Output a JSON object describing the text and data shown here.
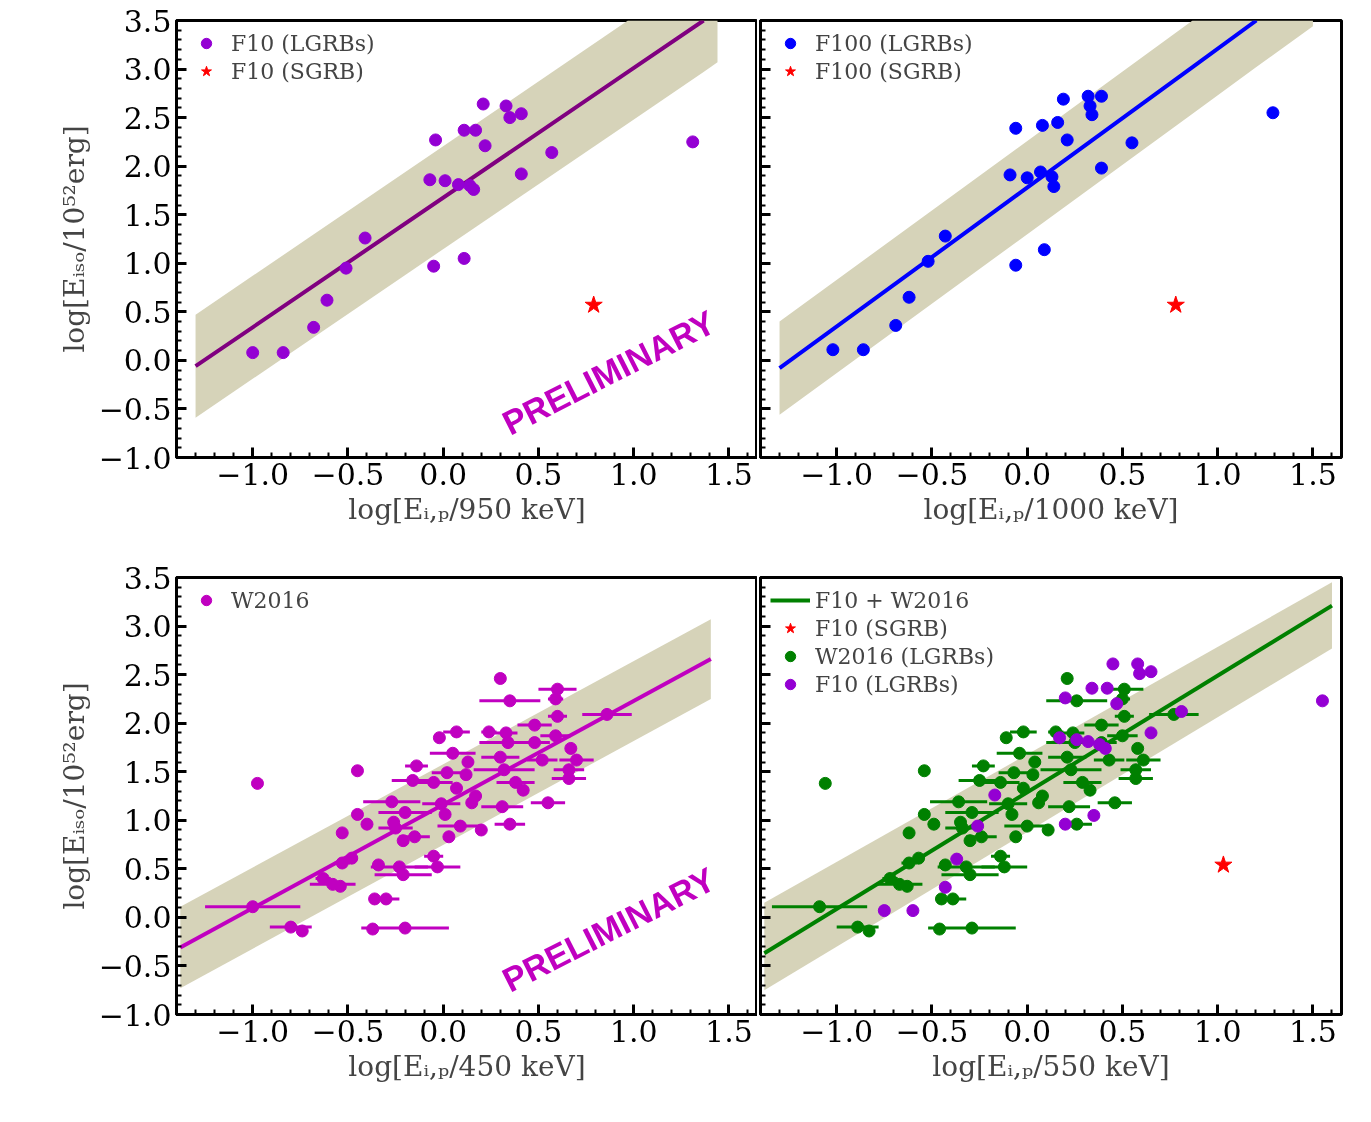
{
  "chart_data": [
    {
      "type": "scatter",
      "xlabel": "log[Eᵢ,ₚ/950 keV]",
      "ylabel": "log[Eᵢₛₒ/10⁵²erg]",
      "xlim": [
        -1.4,
        1.65
      ],
      "ylim": [
        -1.0,
        3.5
      ],
      "xticks": [
        {
          "value": -1.0,
          "label": "−1.0"
        },
        {
          "value": -0.5,
          "label": "−0.5"
        },
        {
          "value": 0.0,
          "label": "0.0"
        },
        {
          "value": 0.5,
          "label": "0.5"
        },
        {
          "value": 1.0,
          "label": "1.0"
        },
        {
          "value": 1.5,
          "label": "1.5"
        }
      ],
      "yticks": [
        {
          "value": -1.0,
          "label": "−1.0"
        },
        {
          "value": -0.5,
          "label": "−0.5"
        },
        {
          "value": 0.0,
          "label": "0.0"
        },
        {
          "value": 0.5,
          "label": "0.5"
        },
        {
          "value": 1.0,
          "label": "1.0"
        },
        {
          "value": 1.5,
          "label": "1.5"
        },
        {
          "value": 2.0,
          "label": "2.0"
        },
        {
          "value": 2.5,
          "label": "2.5"
        },
        {
          "value": 3.0,
          "label": "3.0"
        },
        {
          "value": 3.5,
          "label": "3.5"
        }
      ],
      "legend": "top left",
      "annotations": [
        "PRELIMINARY"
      ],
      "series": [
        {
          "type": "line",
          "color": "#800080",
          "x": [
            -1.3,
            0.97,
            1.367,
            1.44
          ],
          "values": [
            -0.06,
            2.97,
            3.5,
            null
          ],
          "lower": [
            -0.59,
            2.44,
            2.97,
            3.07
          ],
          "upper": [
            0.47,
            3.5,
            3.5,
            3.5
          ]
        },
        {
          "name": "F10 (LGRBs)",
          "color": "#9400d3",
          "marker": "circle",
          "x": [
            -1.0,
            -0.84,
            -0.68,
            -0.61,
            -0.51,
            -0.41,
            -0.05,
            0.11,
            -0.07,
            0.01,
            0.08,
            0.14,
            0.16,
            -0.04,
            0.11,
            0.17,
            0.22,
            0.21,
            0.33,
            0.35,
            0.41,
            0.41,
            0.57,
            1.31
          ],
          "values": [
            0.08,
            0.08,
            0.34,
            0.62,
            0.95,
            1.26,
            0.97,
            1.05,
            1.86,
            1.85,
            1.81,
            1.8,
            1.76,
            2.27,
            2.37,
            2.37,
            2.21,
            2.64,
            2.62,
            2.5,
            2.54,
            1.92,
            2.14,
            2.25
          ]
        },
        {
          "name": "F10 (SGRB)",
          "color": "#ff0000",
          "marker": "star",
          "x": [
            0.79
          ],
          "values": [
            0.57
          ]
        }
      ]
    },
    {
      "type": "scatter",
      "xlabel": "log[Eᵢ,ₚ/1000 keV]",
      "xlim": [
        -1.4,
        1.65
      ],
      "ylim": [
        -1.0,
        3.5
      ],
      "tick_labels": "x",
      "xticks": [
        {
          "value": -1.0,
          "label": "−1.0"
        },
        {
          "value": -0.5,
          "label": "−0.5"
        },
        {
          "value": 0.0,
          "label": "0.0"
        },
        {
          "value": 0.5,
          "label": "0.5"
        },
        {
          "value": 1.0,
          "label": "1.0"
        },
        {
          "value": 1.5,
          "label": "1.5"
        }
      ],
      "yticks": [
        {
          "value": -1.0,
          "label": null
        },
        {
          "value": -0.5,
          "label": null
        },
        {
          "value": 0.0,
          "label": null
        },
        {
          "value": 0.5,
          "label": null
        },
        {
          "value": 1.0,
          "label": null
        },
        {
          "value": 1.5,
          "label": null
        },
        {
          "value": 2.0,
          "label": null
        },
        {
          "value": 2.5,
          "label": null
        },
        {
          "value": 3.0,
          "label": null
        },
        {
          "value": 3.5,
          "label": null
        }
      ],
      "legend": "top left",
      "series": [
        {
          "type": "line",
          "color": "#0000ff",
          "x": [
            -1.3,
            0.868,
            1.203,
            1.5
          ],
          "values": [
            -0.08,
            3.02,
            3.5,
            null
          ],
          "lower": [
            -0.56,
            2.54,
            3.02,
            3.44
          ],
          "upper": [
            0.4,
            3.5,
            3.5,
            3.5
          ]
        },
        {
          "name": "F100 (LGRBs)",
          "color": "#0000ff",
          "marker": "circle",
          "x": [
            -1.02,
            -0.86,
            -0.69,
            -0.62,
            -0.52,
            -0.43,
            -0.06,
            0.09,
            -0.09,
            0.0,
            0.07,
            0.13,
            0.14,
            -0.06,
            0.08,
            0.16,
            0.21,
            0.19,
            0.32,
            0.33,
            0.34,
            0.39,
            0.39,
            0.55,
            1.29
          ],
          "values": [
            0.11,
            0.11,
            0.36,
            0.65,
            1.02,
            1.28,
            0.98,
            1.14,
            1.91,
            1.88,
            1.94,
            1.89,
            1.79,
            2.39,
            2.42,
            2.45,
            2.27,
            2.69,
            2.72,
            2.62,
            2.53,
            2.72,
            1.98,
            2.24,
            2.55
          ]
        },
        {
          "name": "F100 (SGRB)",
          "color": "#ff0000",
          "marker": "star",
          "x": [
            0.78
          ],
          "values": [
            0.57
          ]
        }
      ]
    },
    {
      "type": "scatter",
      "xlabel": "log[Eᵢ,ₚ/450 keV]",
      "ylabel": "log[Eᵢₛₒ/10⁵²erg]",
      "xlim": [
        -1.4,
        1.65
      ],
      "ylim": [
        -1.0,
        3.5
      ],
      "xticks": [
        {
          "value": -1.0,
          "label": "−1.0"
        },
        {
          "value": -0.5,
          "label": "−0.5"
        },
        {
          "value": 0.0,
          "label": "0.0"
        },
        {
          "value": 0.5,
          "label": "0.5"
        },
        {
          "value": 1.0,
          "label": "1.0"
        },
        {
          "value": 1.5,
          "label": "1.5"
        }
      ],
      "yticks": [
        {
          "value": -1.0,
          "label": "−1.0"
        },
        {
          "value": -0.5,
          "label": "−0.5"
        },
        {
          "value": 0.0,
          "label": "0.0"
        },
        {
          "value": 0.5,
          "label": "0.5"
        },
        {
          "value": 1.0,
          "label": "1.0"
        },
        {
          "value": 1.5,
          "label": "1.5"
        },
        {
          "value": 2.0,
          "label": "2.0"
        },
        {
          "value": 2.5,
          "label": "2.5"
        },
        {
          "value": 3.0,
          "label": "3.0"
        },
        {
          "value": 3.5,
          "label": "3.5"
        }
      ],
      "legend": "top left",
      "annotations": [
        "PRELIMINARY"
      ],
      "series": [
        {
          "type": "line",
          "color": "#c000c0",
          "x": [
            -1.38,
            1.405
          ],
          "values": [
            -0.31,
            2.66
          ],
          "lower": [
            -0.73,
            2.25
          ],
          "upper": [
            0.11,
            3.07
          ]
        },
        {
          "name": "W2016",
          "color": "#c000c0",
          "marker": "circle",
          "x": [
            -1.0,
            -0.975,
            -0.8,
            -0.74,
            -0.63,
            -0.58,
            -0.54,
            -0.53,
            -0.53,
            -0.48,
            -0.45,
            -0.45,
            -0.4,
            -0.36,
            -0.3,
            -0.37,
            -0.2,
            -0.27,
            -0.21,
            -0.23,
            -0.25,
            -0.2,
            -0.16,
            -0.14,
            -0.21,
            -0.15,
            -0.05,
            -0.03,
            -0.05,
            -0.02,
            0.07,
            0.05,
            0.02,
            -0.01,
            0.01,
            0.07,
            0.09,
            0.03,
            0.15,
            0.2,
            0.24,
            0.33,
            0.3,
            0.35,
            0.3,
            0.34,
            0.32,
            0.31,
            0.35,
            0.38,
            0.42,
            0.48,
            0.48,
            0.52,
            0.6,
            0.59,
            0.6,
            0.59,
            0.67,
            0.66,
            0.66,
            0.55,
            0.7,
            0.86,
            0.12,
            0.17,
            0.13,
            -0.34,
            -0.26
          ],
          "values": [
            0.11,
            1.38,
            -0.1,
            -0.14,
            0.4,
            0.34,
            0.32,
            0.56,
            0.87,
            0.61,
            1.51,
            1.06,
            0.96,
            0.19,
            0.19,
            -0.12,
            -0.11,
            1.19,
            0.44,
            0.52,
            0.92,
            1.08,
            1.41,
            1.56,
            0.79,
            0.83,
            0.63,
            0.52,
            1.39,
            1.85,
            1.91,
            1.69,
            1.49,
            1.17,
            1.06,
            1.33,
            0.94,
            0.83,
            1.18,
            0.9,
            1.91,
            1.9,
            2.46,
            2.23,
            1.65,
            1.8,
            1.52,
            1.14,
            0.96,
            1.39,
            1.31,
            1.98,
            1.8,
            1.62,
            2.35,
            2.25,
            2.07,
            1.87,
            1.74,
            1.52,
            1.43,
            1.18,
            1.62,
            2.09,
            1.47,
            1.25,
            1.6,
            0.54,
            0.98
          ],
          "xerrors": [
            0.25,
            null,
            0.11,
            null,
            0.04,
            0.12,
            null,
            0.04,
            null,
            null,
            null,
            null,
            null,
            null,
            0.07,
            null,
            0.23,
            0.15,
            0.15,
            0.15,
            0.09,
            0.14,
            0.11,
            0.06,
            null,
            0.08,
            0.05,
            0.12,
            0.1,
            null,
            0.07,
            0.12,
            0.08,
            0.1,
            null,
            null,
            0.12,
            null,
            null,
            null,
            0.04,
            0.06,
            null,
            0.16,
            0.1,
            0.15,
            0.16,
            0.11,
            0.08,
            0.1,
            null,
            0.09,
            0.08,
            0.08,
            0.1,
            0.04,
            0.05,
            0.08,
            null,
            0.08,
            0.09,
            0.09,
            0.09,
            0.13,
            null,
            null,
            null,
            null,
            null
          ]
        }
      ]
    },
    {
      "type": "scatter",
      "xlabel": "log[Eᵢ,ₚ/550 keV]",
      "xlim": [
        -1.4,
        1.65
      ],
      "ylim": [
        -1.0,
        3.5
      ],
      "tick_labels": "x",
      "xticks": [
        {
          "value": -1.0,
          "label": "−1.0"
        },
        {
          "value": -0.5,
          "label": "−0.5"
        },
        {
          "value": 0.0,
          "label": "0.0"
        },
        {
          "value": 0.5,
          "label": "0.5"
        },
        {
          "value": 1.0,
          "label": "1.0"
        },
        {
          "value": 1.5,
          "label": "1.5"
        }
      ],
      "yticks": [
        {
          "value": -1.0,
          "label": null
        },
        {
          "value": -0.5,
          "label": null
        },
        {
          "value": 0.0,
          "label": null
        },
        {
          "value": 0.5,
          "label": null
        },
        {
          "value": 1.0,
          "label": null
        },
        {
          "value": 1.5,
          "label": null
        },
        {
          "value": 2.0,
          "label": null
        },
        {
          "value": 2.5,
          "label": null
        },
        {
          "value": 3.0,
          "label": null
        },
        {
          "value": 3.5,
          "label": null
        }
      ],
      "legend": "top left",
      "series": [
        {
          "type": "line",
          "name": "F10 + W2016",
          "color": "#008000",
          "x": [
            -1.38,
            1.6
          ],
          "values": [
            -0.37,
            3.21
          ],
          "lower": [
            -0.75,
            2.77
          ],
          "upper": [
            0.15,
            3.45
          ]
        },
        {
          "name": "F10 (SGRB)",
          "color": "#ff0000",
          "marker": "star",
          "x": [
            1.03
          ],
          "values": [
            0.54
          ]
        },
        {
          "name": "W2016 (LGRBs)",
          "color": "#008000",
          "marker": "circle",
          "x": [
            -1.09,
            -1.06,
            -0.89,
            -0.83,
            -0.72,
            -0.67,
            -0.63,
            -0.62,
            -0.62,
            -0.57,
            -0.54,
            -0.54,
            -0.49,
            -0.45,
            -0.39,
            -0.46,
            -0.29,
            -0.36,
            -0.3,
            -0.32,
            -0.34,
            -0.29,
            -0.25,
            -0.23,
            -0.3,
            -0.24,
            -0.14,
            -0.12,
            -0.14,
            -0.11,
            -0.02,
            -0.04,
            -0.07,
            -0.1,
            -0.08,
            -0.02,
            0.0,
            -0.06,
            0.06,
            0.11,
            0.15,
            0.24,
            0.21,
            0.26,
            0.21,
            0.25,
            0.23,
            0.22,
            0.26,
            0.29,
            0.33,
            0.39,
            0.39,
            0.43,
            0.51,
            0.5,
            0.51,
            0.5,
            0.58,
            0.57,
            0.57,
            0.46,
            0.61,
            0.77,
            0.03,
            0.08,
            0.04,
            -0.43,
            -0.35
          ],
          "values": [
            0.11,
            1.38,
            -0.1,
            -0.14,
            0.4,
            0.34,
            0.32,
            0.56,
            0.87,
            0.61,
            1.51,
            1.06,
            0.96,
            0.19,
            0.19,
            -0.12,
            -0.11,
            1.19,
            0.44,
            0.52,
            0.92,
            1.08,
            1.41,
            1.56,
            0.79,
            0.83,
            0.63,
            0.52,
            1.39,
            1.85,
            1.91,
            1.69,
            1.49,
            1.17,
            1.06,
            1.33,
            0.94,
            0.83,
            1.18,
            0.9,
            1.91,
            1.9,
            2.46,
            2.23,
            1.65,
            1.8,
            1.52,
            1.14,
            0.96,
            1.39,
            1.31,
            1.98,
            1.8,
            1.62,
            2.35,
            2.25,
            2.07,
            1.87,
            1.74,
            1.52,
            1.43,
            1.18,
            1.62,
            2.09,
            1.47,
            1.25,
            1.6,
            0.54,
            0.98
          ],
          "xerrors": [
            0.25,
            null,
            0.11,
            null,
            0.04,
            0.12,
            null,
            0.04,
            null,
            null,
            null,
            null,
            null,
            null,
            0.07,
            null,
            0.23,
            0.15,
            0.15,
            0.15,
            0.09,
            0.14,
            0.11,
            0.06,
            null,
            0.08,
            0.05,
            0.12,
            0.1,
            null,
            0.07,
            0.12,
            0.08,
            0.1,
            null,
            null,
            0.12,
            null,
            null,
            null,
            0.04,
            0.06,
            null,
            0.16,
            0.1,
            0.15,
            0.16,
            0.11,
            0.08,
            0.1,
            null,
            0.09,
            0.08,
            0.08,
            0.1,
            0.04,
            0.05,
            0.08,
            null,
            0.08,
            0.09,
            0.09,
            0.09,
            0.13,
            null,
            null,
            null,
            null,
            null
          ]
        },
        {
          "name": "F10 (LGRBs)",
          "color": "#9400d3",
          "marker": "circle",
          "x": [
            -0.75,
            -0.6,
            -0.43,
            -0.37,
            -0.26,
            -0.17,
            0.2,
            0.35,
            0.17,
            0.26,
            0.32,
            0.38,
            0.41,
            0.2,
            0.34,
            0.42,
            0.47,
            0.45,
            0.58,
            0.59,
            0.65,
            0.65,
            0.81,
            1.55
          ],
          "values": [
            0.07,
            0.07,
            0.31,
            0.6,
            0.94,
            1.26,
            0.96,
            1.05,
            1.85,
            1.83,
            1.81,
            1.78,
            1.74,
            2.26,
            2.36,
            2.36,
            2.2,
            2.61,
            2.61,
            2.51,
            2.53,
            1.9,
            2.12,
            2.23
          ]
        }
      ]
    }
  ]
}
